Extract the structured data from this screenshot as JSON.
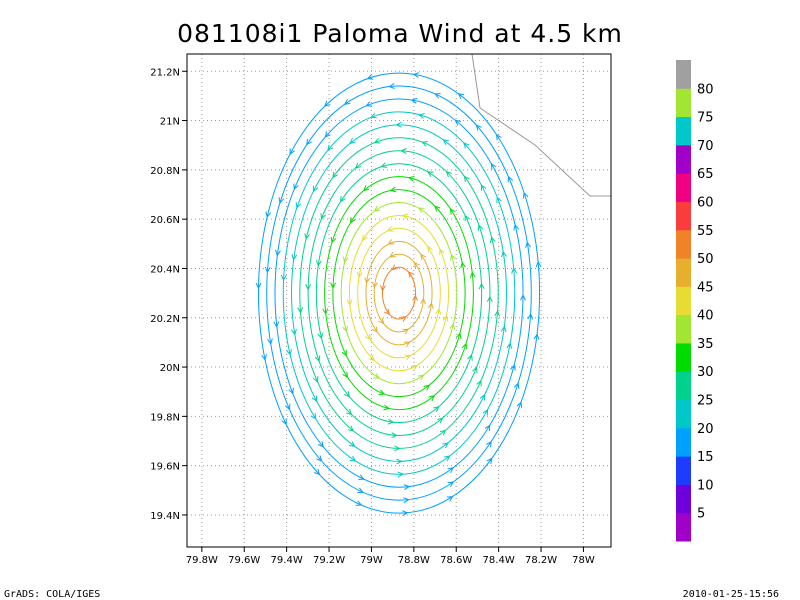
{
  "chart_data": {
    "type": "vector-streamline",
    "title": "081108i1 Paloma Wind at 4.5 km",
    "xlabel": "",
    "ylabel": "",
    "xlim": [
      -79.87,
      -77.87
    ],
    "ylim": [
      19.27,
      21.27
    ],
    "x_ticks": [
      {
        "value": -79.8,
        "label": "79.8W"
      },
      {
        "value": -79.6,
        "label": "79.6W"
      },
      {
        "value": -79.4,
        "label": "79.4W"
      },
      {
        "value": -79.2,
        "label": "79.2W"
      },
      {
        "value": -79.0,
        "label": "79W"
      },
      {
        "value": -78.8,
        "label": "78.8W"
      },
      {
        "value": -78.6,
        "label": "78.6W"
      },
      {
        "value": -78.4,
        "label": "78.4W"
      },
      {
        "value": -78.2,
        "label": "78.2W"
      },
      {
        "value": -78.0,
        "label": "78W"
      }
    ],
    "y_ticks": [
      {
        "value": 19.4,
        "label": "19.4N"
      },
      {
        "value": 19.6,
        "label": "19.6N"
      },
      {
        "value": 19.8,
        "label": "19.8N"
      },
      {
        "value": 20.0,
        "label": "20N"
      },
      {
        "value": 20.2,
        "label": "20.2N"
      },
      {
        "value": 20.4,
        "label": "20.4N"
      },
      {
        "value": 20.6,
        "label": "20.6N"
      },
      {
        "value": 20.8,
        "label": "20.8N"
      },
      {
        "value": 21.0,
        "label": "21N"
      },
      {
        "value": 21.2,
        "label": "21.2N"
      }
    ],
    "grid": true,
    "vortex_center": {
      "lon": -78.87,
      "lat": 20.3
    },
    "vortex_rings": [
      {
        "radius_deg": 0.1,
        "speed": 50
      },
      {
        "radius_deg": 0.15,
        "speed": 48
      },
      {
        "radius_deg": 0.2,
        "speed": 46
      },
      {
        "radius_deg": 0.25,
        "speed": 43
      },
      {
        "radius_deg": 0.3,
        "speed": 40
      },
      {
        "radius_deg": 0.35,
        "speed": 37
      },
      {
        "radius_deg": 0.4,
        "speed": 34
      },
      {
        "radius_deg": 0.45,
        "speed": 31
      },
      {
        "radius_deg": 0.5,
        "speed": 29
      },
      {
        "radius_deg": 0.55,
        "speed": 27
      },
      {
        "radius_deg": 0.6,
        "speed": 25
      },
      {
        "radius_deg": 0.65,
        "speed": 23
      },
      {
        "radius_deg": 0.7,
        "speed": 21
      },
      {
        "radius_deg": 0.75,
        "speed": 19
      },
      {
        "radius_deg": 0.8,
        "speed": 17
      },
      {
        "radius_deg": 0.85,
        "speed": 15
      }
    ],
    "colorbar": {
      "labels": [
        "5",
        "10",
        "15",
        "20",
        "25",
        "30",
        "35",
        "40",
        "45",
        "50",
        "55",
        "60",
        "65",
        "70",
        "75",
        "80"
      ],
      "colors": [
        "#a000c8",
        "#6e00dc",
        "#1e3cff",
        "#00a0ff",
        "#00c8c8",
        "#00d28c",
        "#00dc00",
        "#a0e632",
        "#e6dc32",
        "#e6af2d",
        "#f08228",
        "#fa3c3c",
        "#f00082",
        "#a000c8",
        "#00c8c8",
        "#a0e632",
        "#a0a0a0"
      ]
    }
  },
  "footer": {
    "left": "GrADS: COLA/IGES",
    "right": "2010-01-25-15:56"
  }
}
